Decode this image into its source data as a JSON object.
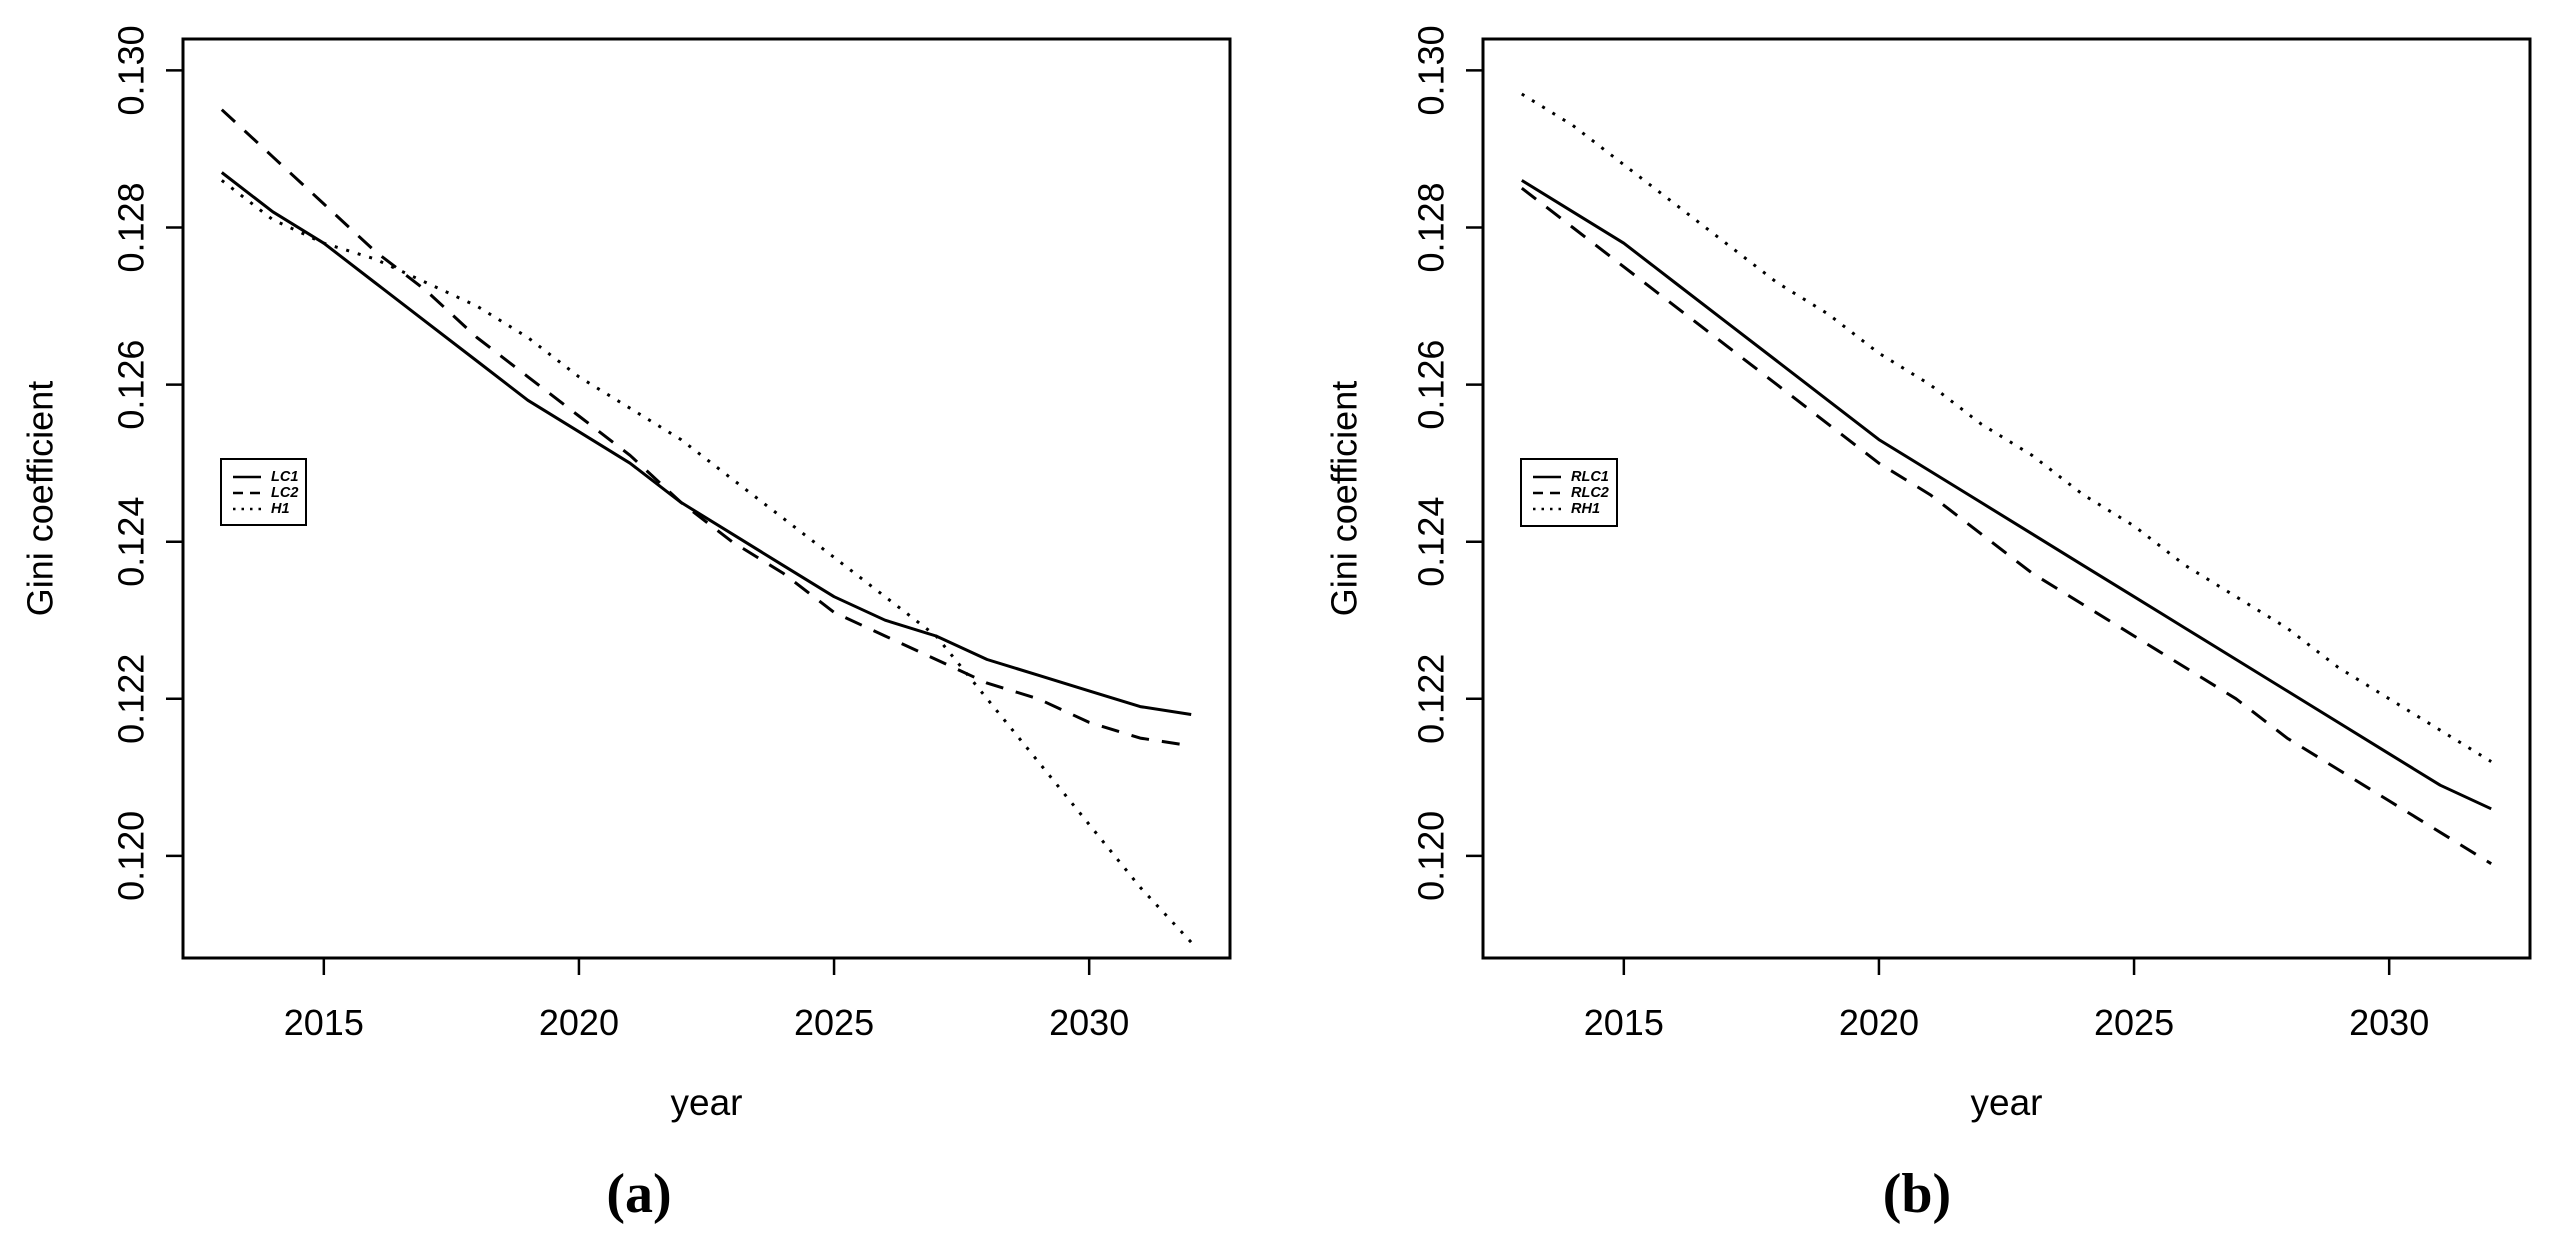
{
  "figure": {
    "background": "#ffffff",
    "foreground": "#000000"
  },
  "chart_data": [
    {
      "type": "line",
      "panel_label": "(a)",
      "xlabel": "year",
      "ylabel": "Gini coefficient",
      "xlim": [
        2012.24,
        2032.76
      ],
      "ylim": [
        0.1187,
        0.1304
      ],
      "x_ticks": [
        2015,
        2020,
        2025,
        2030
      ],
      "x_tick_labels": [
        "2015",
        "2020",
        "2025",
        "2030"
      ],
      "y_ticks": [
        0.12,
        0.122,
        0.124,
        0.126,
        0.128,
        0.13
      ],
      "y_tick_labels": [
        "0.120",
        "0.122",
        "0.124",
        "0.126",
        "0.128",
        "0.130"
      ],
      "grid": false,
      "legend": {
        "position": "left-middle",
        "entries": [
          {
            "label": "LC1",
            "style": "solid"
          },
          {
            "label": "LC2",
            "style": "dashed"
          },
          {
            "label": "H1",
            "style": "dotted"
          }
        ]
      },
      "x": [
        2013,
        2014,
        2015,
        2016,
        2017,
        2018,
        2019,
        2020,
        2021,
        2022,
        2023,
        2024,
        2025,
        2026,
        2027,
        2028,
        2029,
        2030,
        2031,
        2032
      ],
      "series": [
        {
          "name": "LC1",
          "style": "solid",
          "values": [
            0.1287,
            0.1282,
            0.1278,
            0.1273,
            0.1268,
            0.1263,
            0.1258,
            0.1254,
            0.125,
            0.1245,
            0.1241,
            0.1237,
            0.1233,
            0.123,
            0.1228,
            0.1225,
            0.1223,
            0.1221,
            0.1219,
            0.1218
          ]
        },
        {
          "name": "LC2",
          "style": "dashed",
          "values": [
            0.1295,
            0.1289,
            0.1283,
            0.1277,
            0.1272,
            0.1266,
            0.1261,
            0.1256,
            0.1251,
            0.1245,
            0.124,
            0.1236,
            0.1231,
            0.1228,
            0.1225,
            0.1222,
            0.122,
            0.1217,
            0.1215,
            0.1214
          ]
        },
        {
          "name": "H1",
          "style": "dotted",
          "values": [
            0.1286,
            0.1281,
            0.1278,
            0.1276,
            0.1273,
            0.127,
            0.1266,
            0.1261,
            0.1257,
            0.1253,
            0.1248,
            0.1243,
            0.1238,
            0.1233,
            0.1228,
            0.122,
            0.1212,
            0.1204,
            0.1196,
            0.1189
          ]
        }
      ]
    },
    {
      "type": "line",
      "panel_label": "(b)",
      "xlabel": "year",
      "ylabel": "Gini coefficient",
      "xlim": [
        2012.24,
        2032.76
      ],
      "ylim": [
        0.1187,
        0.1304
      ],
      "x_ticks": [
        2015,
        2020,
        2025,
        2030
      ],
      "x_tick_labels": [
        "2015",
        "2020",
        "2025",
        "2030"
      ],
      "y_ticks": [
        0.12,
        0.122,
        0.124,
        0.126,
        0.128,
        0.13
      ],
      "y_tick_labels": [
        "0.120",
        "0.122",
        "0.124",
        "0.126",
        "0.128",
        "0.130"
      ],
      "grid": false,
      "legend": {
        "position": "left-middle",
        "entries": [
          {
            "label": "RLC1",
            "style": "solid"
          },
          {
            "label": "RLC2",
            "style": "dashed"
          },
          {
            "label": "RH1",
            "style": "dotted"
          }
        ]
      },
      "x": [
        2013,
        2014,
        2015,
        2016,
        2017,
        2018,
        2019,
        2020,
        2021,
        2022,
        2023,
        2024,
        2025,
        2026,
        2027,
        2028,
        2029,
        2030,
        2031,
        2032
      ],
      "series": [
        {
          "name": "RLC1",
          "style": "solid",
          "values": [
            0.1286,
            0.1282,
            0.1278,
            0.1273,
            0.1268,
            0.1263,
            0.1258,
            0.1253,
            0.1249,
            0.1245,
            0.1241,
            0.1237,
            0.1233,
            0.1229,
            0.1225,
            0.1221,
            0.1217,
            0.1213,
            0.1209,
            0.1206
          ]
        },
        {
          "name": "RLC2",
          "style": "dashed",
          "values": [
            0.1285,
            0.128,
            0.1275,
            0.127,
            0.1265,
            0.126,
            0.1255,
            0.125,
            0.1246,
            0.1241,
            0.1236,
            0.1232,
            0.1228,
            0.1224,
            0.122,
            0.1215,
            0.1211,
            0.1207,
            0.1203,
            0.1199
          ]
        },
        {
          "name": "RH1",
          "style": "dotted",
          "values": [
            0.1297,
            0.1293,
            0.1288,
            0.1283,
            0.1278,
            0.1273,
            0.1269,
            0.1264,
            0.126,
            0.1255,
            0.1251,
            0.1246,
            0.1242,
            0.1237,
            0.1233,
            0.1229,
            0.1224,
            0.122,
            0.1216,
            0.1212
          ]
        }
      ]
    }
  ]
}
